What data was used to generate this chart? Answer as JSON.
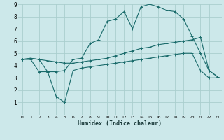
{
  "xlabel": "Humidex (Indice chaleur)",
  "bg_color": "#cce8ea",
  "grid_color": "#aacece",
  "line_color": "#1a6b6b",
  "xlim": [
    -0.5,
    23.5
  ],
  "ylim": [
    0,
    9
  ],
  "xticks": [
    0,
    1,
    2,
    3,
    4,
    5,
    6,
    7,
    8,
    9,
    10,
    11,
    12,
    13,
    14,
    15,
    16,
    17,
    18,
    19,
    20,
    21,
    22,
    23
  ],
  "yticks": [
    1,
    2,
    3,
    4,
    5,
    6,
    7,
    8,
    9
  ],
  "curve1_x": [
    0,
    1,
    2,
    3,
    4,
    5,
    6,
    7,
    8,
    9,
    10,
    11,
    12,
    13,
    14,
    15,
    16,
    17,
    18,
    19,
    20,
    21,
    22,
    23
  ],
  "curve1_y": [
    4.5,
    4.6,
    4.5,
    3.5,
    3.5,
    3.6,
    4.5,
    4.6,
    5.8,
    6.1,
    7.6,
    7.8,
    8.4,
    7.0,
    8.8,
    9.0,
    8.8,
    8.5,
    8.4,
    7.8,
    6.4,
    5.0,
    3.6,
    3.1
  ],
  "curve2_x": [
    0,
    1,
    2,
    3,
    4,
    5,
    6,
    7,
    8,
    9,
    10,
    11,
    12,
    13,
    14,
    15,
    16,
    17,
    18,
    19,
    20,
    21,
    22,
    23
  ],
  "curve2_y": [
    4.5,
    4.6,
    4.5,
    4.4,
    4.3,
    4.2,
    4.2,
    4.3,
    4.4,
    4.5,
    4.6,
    4.8,
    5.0,
    5.2,
    5.4,
    5.5,
    5.7,
    5.8,
    5.9,
    6.0,
    6.1,
    6.3,
    3.6,
    3.1
  ],
  "curve3_x": [
    0,
    1,
    2,
    3,
    4,
    5,
    6,
    7,
    8,
    9,
    10,
    11,
    12,
    13,
    14,
    15,
    16,
    17,
    18,
    19,
    20,
    21,
    22,
    23
  ],
  "curve3_y": [
    4.5,
    4.5,
    3.5,
    3.5,
    1.5,
    1.0,
    3.6,
    3.8,
    3.9,
    4.0,
    4.1,
    4.2,
    4.3,
    4.4,
    4.5,
    4.6,
    4.7,
    4.8,
    4.9,
    5.0,
    5.0,
    3.6,
    3.0,
    3.0
  ]
}
